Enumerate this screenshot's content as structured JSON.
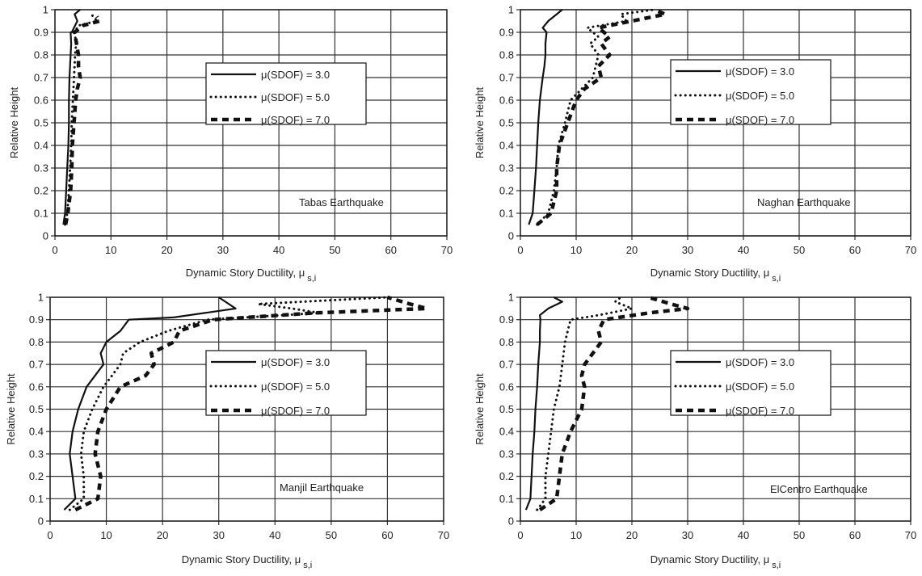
{
  "chart_data": [
    {
      "type": "line",
      "annotation": "Tabas Earthquake",
      "xlabel": "Dynamic Story Ductility, μ",
      "xlabel_sub": "s,i",
      "ylabel": "Relative Height",
      "xlim": [
        0,
        70
      ],
      "ylim": [
        0,
        1
      ],
      "x_ticks": [
        "0",
        "10",
        "20",
        "30",
        "40",
        "50",
        "60",
        "70"
      ],
      "y_ticks": [
        "0",
        "0.1",
        "0.2",
        "0.3",
        "0.4",
        "0.5",
        "0.6",
        "0.7",
        "0.8",
        "0.9",
        "1"
      ],
      "grid": true,
      "legend_position": "center",
      "series": [
        {
          "name": "μ(SDOF) = 3.0",
          "style": "solid",
          "x": [
            1.5,
            1.8,
            2.0,
            2.2,
            2.4,
            2.5,
            2.5,
            2.6,
            2.7,
            2.8,
            2.9,
            2.8,
            3.0,
            4.0,
            3.5,
            4.5
          ],
          "y": [
            0.05,
            0.1,
            0.2,
            0.3,
            0.4,
            0.5,
            0.6,
            0.7,
            0.75,
            0.8,
            0.85,
            0.9,
            0.9,
            0.95,
            0.98,
            1.0
          ]
        },
        {
          "name": "μ(SDOF) = 5.0",
          "style": "dotted",
          "x": [
            1.8,
            2.2,
            2.5,
            2.7,
            2.9,
            3.0,
            3.2,
            3.4,
            3.6,
            3.8,
            3.5,
            4.2,
            7.5,
            6.5
          ],
          "y": [
            0.05,
            0.1,
            0.2,
            0.3,
            0.4,
            0.5,
            0.6,
            0.7,
            0.8,
            0.85,
            0.9,
            0.93,
            0.95,
            0.98
          ]
        },
        {
          "name": "μ(SDOF) = 7.0",
          "style": "dashed",
          "x": [
            1.9,
            2.3,
            2.8,
            3.0,
            3.1,
            3.4,
            3.7,
            4.0,
            4.5,
            4.2,
            4.2,
            3.5,
            5.0,
            8.0,
            7.5
          ],
          "y": [
            0.05,
            0.1,
            0.2,
            0.3,
            0.4,
            0.5,
            0.6,
            0.65,
            0.7,
            0.75,
            0.8,
            0.9,
            0.93,
            0.95,
            0.97
          ]
        }
      ]
    },
    {
      "type": "line",
      "annotation": "Naghan Earthquake",
      "xlabel": "Dynamic Story Ductility, μ",
      "xlabel_sub": "s,i",
      "ylabel": "Relative Height",
      "xlim": [
        0,
        70
      ],
      "ylim": [
        0,
        1
      ],
      "x_ticks": [
        "0",
        "10",
        "20",
        "30",
        "40",
        "50",
        "60",
        "70"
      ],
      "y_ticks": [
        "0",
        "0.1",
        "0.2",
        "0.3",
        "0.4",
        "0.5",
        "0.6",
        "0.7",
        "0.8",
        "0.9",
        "1"
      ],
      "grid": true,
      "legend_position": "center",
      "series": [
        {
          "name": "μ(SDOF) = 3.0",
          "style": "solid",
          "x": [
            1.5,
            2.2,
            2.5,
            2.8,
            3.0,
            3.2,
            3.5,
            4.0,
            4.3,
            4.5,
            4.5,
            4.7,
            4.0,
            5.0,
            6.5,
            7.5
          ],
          "y": [
            0.05,
            0.1,
            0.2,
            0.3,
            0.4,
            0.5,
            0.6,
            0.7,
            0.75,
            0.8,
            0.85,
            0.9,
            0.92,
            0.95,
            0.98,
            1.0
          ]
        },
        {
          "name": "μ(SDOF) = 5.0",
          "style": "dotted",
          "x": [
            3.0,
            5.0,
            6.0,
            6.5,
            6.8,
            8.0,
            9.0,
            11.0,
            13.0,
            13.5,
            14.0,
            12.5,
            14.0,
            12.0,
            19.0,
            18.0,
            24.0
          ],
          "y": [
            0.05,
            0.1,
            0.2,
            0.3,
            0.4,
            0.5,
            0.6,
            0.65,
            0.7,
            0.75,
            0.8,
            0.85,
            0.88,
            0.92,
            0.95,
            0.98,
            1.0
          ]
        },
        {
          "name": "μ(SDOF) = 7.0",
          "style": "dashed",
          "x": [
            3.0,
            5.5,
            6.5,
            6.5,
            7.0,
            8.5,
            10.0,
            11.5,
            14.5,
            14.0,
            16.0,
            14.5,
            16.0,
            14.0,
            20.0,
            26.0,
            24.0
          ],
          "y": [
            0.05,
            0.1,
            0.2,
            0.3,
            0.4,
            0.5,
            0.6,
            0.65,
            0.7,
            0.75,
            0.8,
            0.85,
            0.88,
            0.92,
            0.95,
            0.98,
            1.0
          ]
        }
      ]
    },
    {
      "type": "line",
      "annotation": "Manjil Earthquake",
      "xlabel": "Dynamic Story Ductility, μ",
      "xlabel_sub": "s,i",
      "ylabel": "Relative Height",
      "xlim": [
        0,
        70
      ],
      "ylim": [
        0,
        1
      ],
      "x_ticks": [
        "0",
        "10",
        "20",
        "30",
        "40",
        "50",
        "60",
        "70"
      ],
      "y_ticks": [
        "0",
        "0.1",
        "0.2",
        "0.3",
        "0.4",
        "0.5",
        "0.6",
        "0.7",
        "0.8",
        "0.9",
        "1"
      ],
      "grid": true,
      "legend_position": "center-right",
      "series": [
        {
          "name": "μ(SDOF) = 3.0",
          "style": "solid",
          "x": [
            2.5,
            4.5,
            4.0,
            3.5,
            4.0,
            5.0,
            6.5,
            9.5,
            9.0,
            10.0,
            12.5,
            14.0,
            22.0,
            33.0,
            30.0
          ],
          "y": [
            0.05,
            0.1,
            0.2,
            0.3,
            0.4,
            0.5,
            0.6,
            0.7,
            0.75,
            0.8,
            0.85,
            0.9,
            0.91,
            0.95,
            1.0
          ]
        },
        {
          "name": "μ(SDOF) = 5.0",
          "style": "dotted",
          "x": [
            3.5,
            6.0,
            6.0,
            5.5,
            6.0,
            7.5,
            9.5,
            12.5,
            13.0,
            16.0,
            21.0,
            28.0,
            48.0,
            43.0,
            37.0,
            60.0
          ],
          "y": [
            0.05,
            0.1,
            0.2,
            0.3,
            0.4,
            0.5,
            0.6,
            0.7,
            0.75,
            0.8,
            0.85,
            0.9,
            0.93,
            0.95,
            0.97,
            1.0
          ]
        },
        {
          "name": "μ(SDOF) = 7.0",
          "style": "dashed",
          "x": [
            4.5,
            8.5,
            9.0,
            8.0,
            8.5,
            10.0,
            12.5,
            17.0,
            18.5,
            18.0,
            22.0,
            23.0,
            29.0,
            47.0,
            67.0,
            64.0,
            60.0
          ],
          "y": [
            0.05,
            0.1,
            0.2,
            0.3,
            0.4,
            0.5,
            0.6,
            0.65,
            0.7,
            0.75,
            0.8,
            0.85,
            0.9,
            0.93,
            0.95,
            0.97,
            1.0
          ]
        }
      ]
    },
    {
      "type": "line",
      "annotation": "ElCentro Earthquake",
      "xlabel": "Dynamic Story Ductility, μ",
      "xlabel_sub": "s,i",
      "ylabel": "Relative Height",
      "xlim": [
        0,
        70
      ],
      "ylim": [
        0,
        1
      ],
      "x_ticks": [
        "0",
        "10",
        "20",
        "30",
        "40",
        "50",
        "60",
        "70"
      ],
      "y_ticks": [
        "0",
        "0.1",
        "0.2",
        "0.3",
        "0.4",
        "0.5",
        "0.6",
        "0.7",
        "0.8",
        "0.9",
        "1"
      ],
      "grid": true,
      "legend_position": "center-right",
      "series": [
        {
          "name": "μ(SDOF) = 3.0",
          "style": "solid",
          "x": [
            1.0,
            1.8,
            2.0,
            2.2,
            2.5,
            2.7,
            3.0,
            3.2,
            3.5,
            3.5,
            3.6,
            3.5,
            5.0,
            7.5,
            6.0
          ],
          "y": [
            0.05,
            0.1,
            0.2,
            0.3,
            0.4,
            0.5,
            0.6,
            0.7,
            0.8,
            0.85,
            0.9,
            0.92,
            0.95,
            0.98,
            1.0
          ]
        },
        {
          "name": "μ(SDOF) = 5.0",
          "style": "dotted",
          "x": [
            3.0,
            4.5,
            4.5,
            5.0,
            5.5,
            6.0,
            7.0,
            7.5,
            8.0,
            8.5,
            9.0,
            14.0,
            20.0,
            17.0,
            18.0
          ],
          "y": [
            0.05,
            0.1,
            0.2,
            0.3,
            0.4,
            0.5,
            0.6,
            0.7,
            0.8,
            0.85,
            0.9,
            0.92,
            0.95,
            0.98,
            1.0
          ]
        },
        {
          "name": "μ(SDOF) = 7.0",
          "style": "dashed",
          "x": [
            3.5,
            6.5,
            7.0,
            7.5,
            9.0,
            11.0,
            11.5,
            11.0,
            11.5,
            14.5,
            14.0,
            15.0,
            23.0,
            30.0,
            27.0,
            23.0
          ],
          "y": [
            0.05,
            0.1,
            0.2,
            0.3,
            0.4,
            0.5,
            0.6,
            0.65,
            0.7,
            0.8,
            0.85,
            0.9,
            0.93,
            0.95,
            0.97,
            1.0
          ]
        }
      ]
    }
  ]
}
